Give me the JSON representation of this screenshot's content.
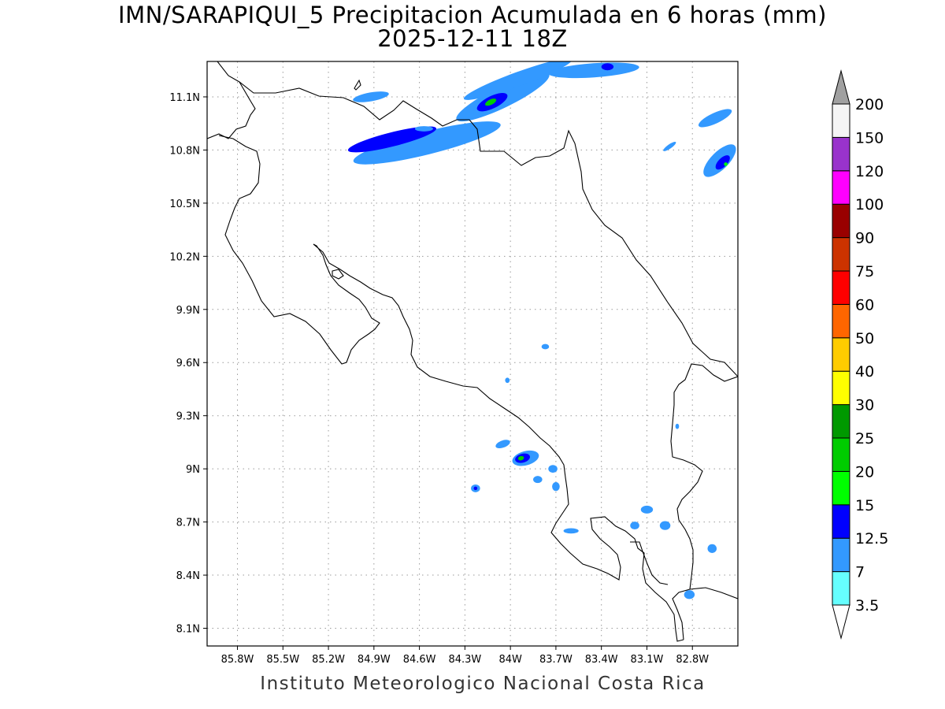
{
  "title": {
    "line1": "IMN/SARAPIQUI_5 Precipitacion Acumulada en 6 horas (mm)",
    "line2": "2025-12-11 18Z"
  },
  "footer": "Instituto Meteorologico Nacional Costa Rica",
  "map": {
    "lon_range": [
      -86.0,
      -82.5
    ],
    "lat_range": [
      8.0,
      11.3
    ],
    "lon_ticks": [
      "85.8W",
      "85.5W",
      "85.2W",
      "84.9W",
      "84.6W",
      "84.3W",
      "84W",
      "83.7W",
      "83.4W",
      "83.1W",
      "82.8W"
    ],
    "lon_tick_values": [
      -85.8,
      -85.5,
      -85.2,
      -84.9,
      -84.6,
      -84.3,
      -84.0,
      -83.7,
      -83.4,
      -83.1,
      -82.8
    ],
    "lat_ticks": [
      "11.1N",
      "10.8N",
      "10.5N",
      "10.2N",
      "9.9N",
      "9.6N",
      "9.3N",
      "9N",
      "8.7N",
      "8.4N",
      "8.1N"
    ],
    "lat_tick_values": [
      11.1,
      10.8,
      10.5,
      10.2,
      9.9,
      9.6,
      9.3,
      9.0,
      8.7,
      8.4,
      8.1
    ],
    "grid": "dotted"
  },
  "colorbar": {
    "levels": [
      "3.5",
      "7",
      "12.5",
      "15",
      "20",
      "25",
      "30",
      "40",
      "50",
      "60",
      "75",
      "90",
      "100",
      "120",
      "150",
      "200"
    ],
    "colors": [
      "#66ffff",
      "#3399ff",
      "#0000ff",
      "#00ff00",
      "#00cc00",
      "#009900",
      "#ffff00",
      "#ffcc00",
      "#ff6600",
      "#ff0000",
      "#cc3300",
      "#990000",
      "#ff00ff",
      "#9933cc",
      "#f5f5f5"
    ],
    "below_color": "#ffffff",
    "above_color": "#a0a0a0"
  },
  "precip_areas": [
    {
      "lon": -84.55,
      "lat": 10.84,
      "rx": 0.5,
      "ry": 0.065,
      "angle": -14,
      "level": 1
    },
    {
      "lon": -84.78,
      "lat": 10.86,
      "rx": 0.3,
      "ry": 0.04,
      "angle": -14,
      "level": 2
    },
    {
      "lon": -84.05,
      "lat": 11.1,
      "rx": 0.34,
      "ry": 0.06,
      "angle": -26,
      "level": 1
    },
    {
      "lon": -84.12,
      "lat": 11.07,
      "rx": 0.11,
      "ry": 0.035,
      "angle": -26,
      "level": 2
    },
    {
      "lon": -84.13,
      "lat": 11.07,
      "rx": 0.04,
      "ry": 0.015,
      "angle": -26,
      "level": 4
    },
    {
      "lon": -83.95,
      "lat": 11.2,
      "rx": 0.38,
      "ry": 0.04,
      "angle": -20,
      "level": 1
    },
    {
      "lon": -83.45,
      "lat": 11.25,
      "rx": 0.3,
      "ry": 0.04,
      "angle": -4,
      "level": 1
    },
    {
      "lon": -83.36,
      "lat": 11.27,
      "rx": 0.04,
      "ry": 0.02,
      "angle": 0,
      "level": 2
    },
    {
      "lon": -84.92,
      "lat": 11.1,
      "rx": 0.12,
      "ry": 0.025,
      "angle": -10,
      "level": 1
    },
    {
      "lon": -84.57,
      "lat": 10.92,
      "rx": 0.06,
      "ry": 0.015,
      "angle": 0,
      "level": 1
    },
    {
      "lon": -82.65,
      "lat": 10.98,
      "rx": 0.12,
      "ry": 0.03,
      "angle": -25,
      "level": 1
    },
    {
      "lon": -82.62,
      "lat": 10.74,
      "rx": 0.14,
      "ry": 0.05,
      "angle": -45,
      "level": 1
    },
    {
      "lon": -82.6,
      "lat": 10.73,
      "rx": 0.06,
      "ry": 0.025,
      "angle": -45,
      "level": 2
    },
    {
      "lon": -82.58,
      "lat": 10.72,
      "rx": 0.012,
      "ry": 0.01,
      "angle": 0,
      "level": 3
    },
    {
      "lon": -82.95,
      "lat": 10.82,
      "rx": 0.05,
      "ry": 0.012,
      "angle": -35,
      "level": 1
    },
    {
      "lon": -83.9,
      "lat": 9.06,
      "rx": 0.09,
      "ry": 0.04,
      "angle": -15,
      "level": 1
    },
    {
      "lon": -83.92,
      "lat": 9.06,
      "rx": 0.05,
      "ry": 0.025,
      "angle": -15,
      "level": 2
    },
    {
      "lon": -83.93,
      "lat": 9.06,
      "rx": 0.02,
      "ry": 0.012,
      "angle": -15,
      "level": 4
    },
    {
      "lon": -84.05,
      "lat": 9.14,
      "rx": 0.05,
      "ry": 0.02,
      "angle": -20,
      "level": 1
    },
    {
      "lon": -84.23,
      "lat": 8.89,
      "rx": 0.03,
      "ry": 0.022,
      "angle": 0,
      "level": 1
    },
    {
      "lon": -84.23,
      "lat": 8.89,
      "rx": 0.012,
      "ry": 0.01,
      "angle": 0,
      "level": 2
    },
    {
      "lon": -83.82,
      "lat": 8.94,
      "rx": 0.03,
      "ry": 0.02,
      "angle": 0,
      "level": 1
    },
    {
      "lon": -83.72,
      "lat": 9.0,
      "rx": 0.03,
      "ry": 0.022,
      "angle": 0,
      "level": 1
    },
    {
      "lon": -83.7,
      "lat": 8.9,
      "rx": 0.025,
      "ry": 0.025,
      "angle": 0,
      "level": 1
    },
    {
      "lon": -83.1,
      "lat": 8.77,
      "rx": 0.04,
      "ry": 0.022,
      "angle": 0,
      "level": 1
    },
    {
      "lon": -83.18,
      "lat": 8.68,
      "rx": 0.03,
      "ry": 0.022,
      "angle": 0,
      "level": 1
    },
    {
      "lon": -82.98,
      "lat": 8.68,
      "rx": 0.035,
      "ry": 0.025,
      "angle": 0,
      "level": 1
    },
    {
      "lon": -82.67,
      "lat": 8.55,
      "rx": 0.03,
      "ry": 0.025,
      "angle": 0,
      "level": 1
    },
    {
      "lon": -82.82,
      "lat": 8.29,
      "rx": 0.035,
      "ry": 0.025,
      "angle": 0,
      "level": 1
    },
    {
      "lon": -83.6,
      "lat": 8.65,
      "rx": 0.05,
      "ry": 0.015,
      "angle": 0,
      "level": 1
    },
    {
      "lon": -83.77,
      "lat": 9.69,
      "rx": 0.025,
      "ry": 0.015,
      "angle": 0,
      "level": 1
    },
    {
      "lon": -84.02,
      "lat": 9.5,
      "rx": 0.015,
      "ry": 0.015,
      "angle": 0,
      "level": 1
    },
    {
      "lon": -82.9,
      "lat": 9.24,
      "rx": 0.012,
      "ry": 0.015,
      "angle": 0,
      "level": 1
    }
  ]
}
